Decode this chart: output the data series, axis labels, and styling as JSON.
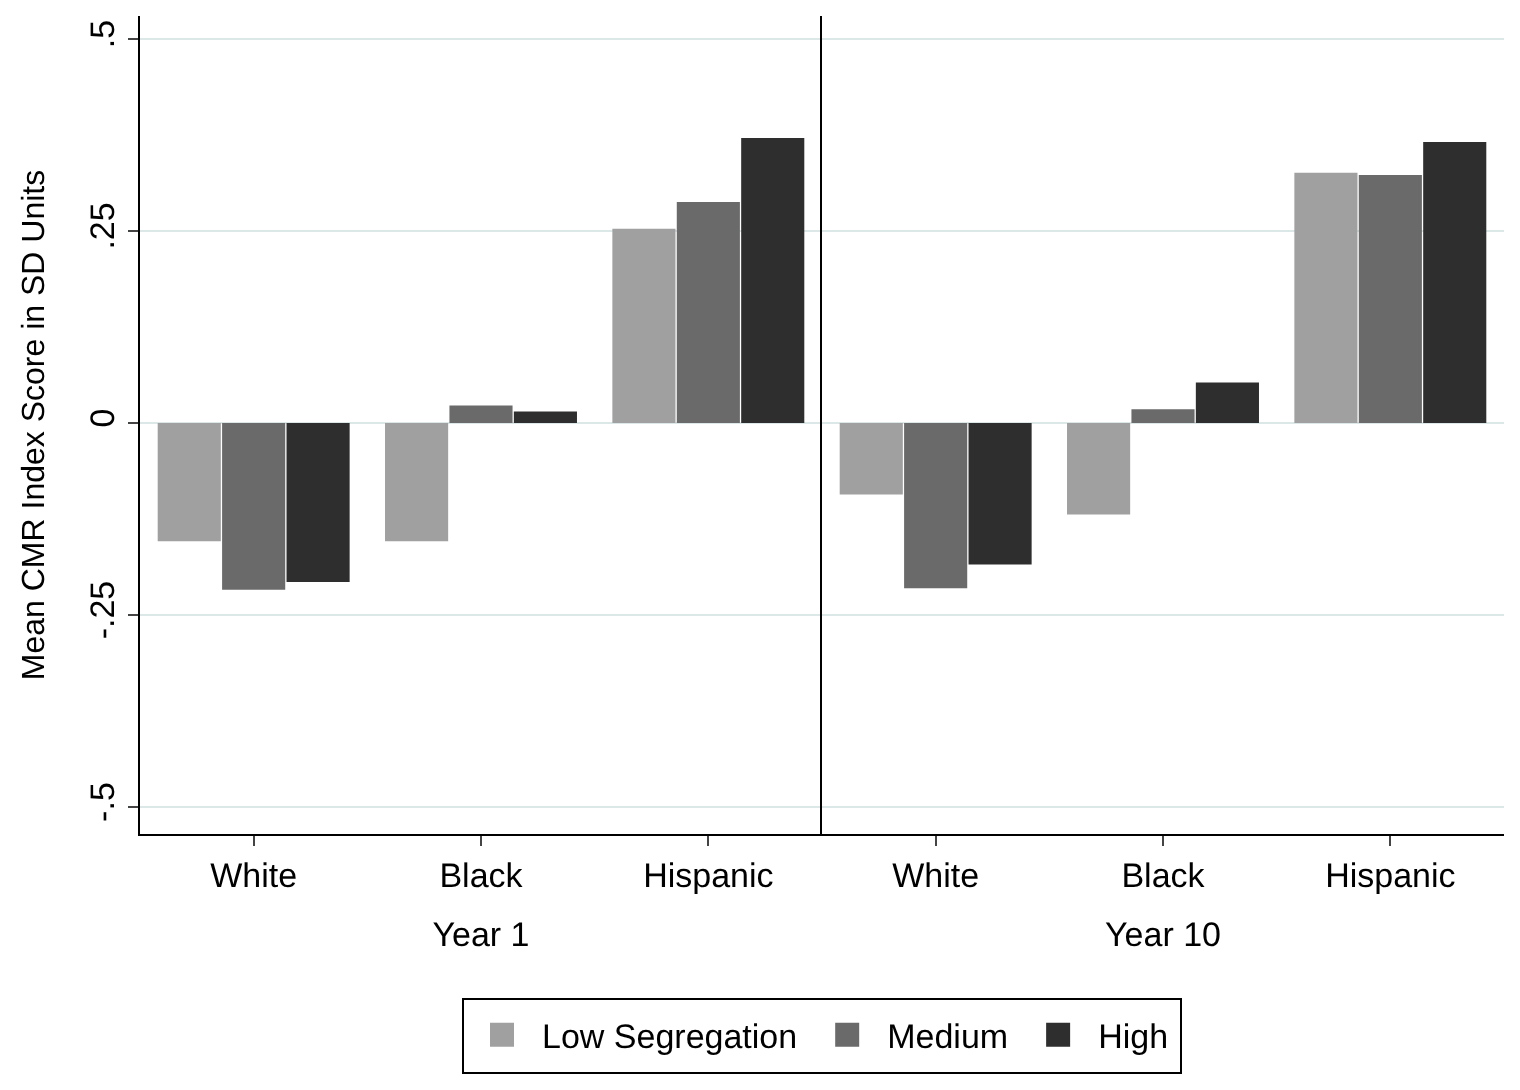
{
  "chart_data": [
    {
      "type": "bar",
      "xlabel": "Year 1",
      "ylabel": "Mean CMR Index Score in SD Units",
      "categories": [
        "White",
        "Black",
        "Hispanic"
      ],
      "series": [
        {
          "name": "Low Segregation",
          "color": "#a0a0a0",
          "values": [
            -0.154,
            -0.154,
            0.253
          ]
        },
        {
          "name": "Medium",
          "color": "#6a6a6a",
          "values": [
            -0.217,
            0.023,
            0.288
          ]
        },
        {
          "name": "High",
          "color": "#2e2e2e",
          "values": [
            -0.207,
            0.015,
            0.371
          ]
        }
      ],
      "ylim": [
        -0.535,
        0.53
      ],
      "yticks": [
        {
          "value": -0.5,
          "label": "-.5"
        },
        {
          "value": -0.25,
          "label": "-.25"
        },
        {
          "value": 0,
          "label": "0"
        },
        {
          "value": 0.25,
          "label": ".25"
        },
        {
          "value": 0.5,
          "label": ".5"
        }
      ],
      "grid": "y",
      "legend": "bottom"
    },
    {
      "type": "bar",
      "xlabel": "Year 10",
      "categories": [
        "White",
        "Black",
        "Hispanic"
      ],
      "series": [
        {
          "color": "#a0a0a0",
          "values": [
            -0.093,
            -0.119,
            0.326
          ]
        },
        {
          "color": "#6a6a6a",
          "values": [
            -0.215,
            0.018,
            0.323
          ]
        },
        {
          "color": "#2e2e2e",
          "values": [
            -0.184,
            0.053,
            0.366
          ]
        }
      ],
      "ylim": [
        -0.535,
        0.53
      ],
      "yticks": [
        -0.5,
        -0.25,
        0,
        0.25,
        0.5
      ],
      "grid": "y",
      "tick_labels": "x"
    }
  ]
}
